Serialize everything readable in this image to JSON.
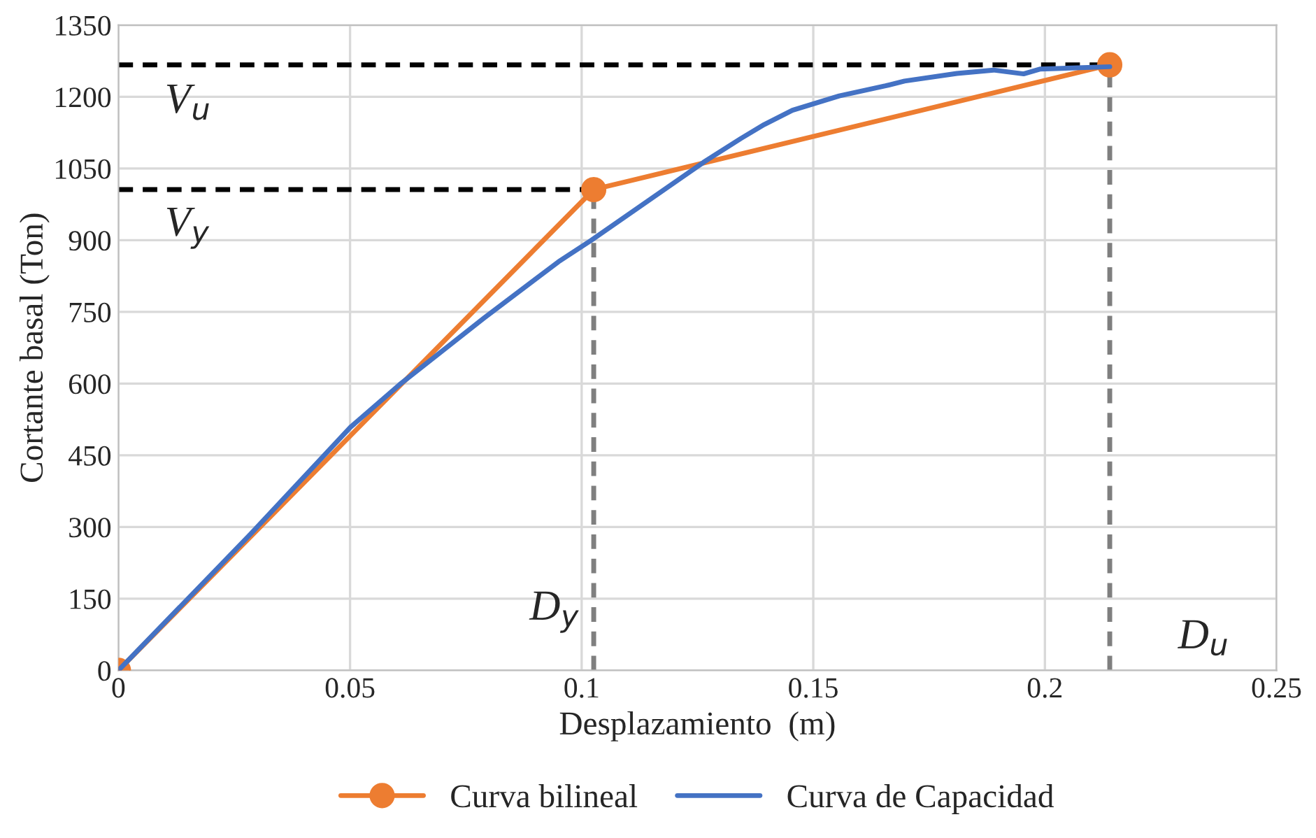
{
  "chart_data": {
    "type": "line",
    "xlabel": "Desplazamiento  (m)",
    "ylabel": "Cortante basal (Ton)",
    "xlim": [
      0,
      0.25
    ],
    "xticks": [
      0,
      0.05,
      0.1,
      0.15,
      0.2,
      0.25
    ],
    "ylim": [
      0,
      1350
    ],
    "yticks": [
      0,
      150,
      300,
      450,
      600,
      750,
      900,
      1050,
      1200,
      1350
    ],
    "grid": true,
    "legend": "bottom",
    "series": [
      {
        "name": "Curva bilineal",
        "color": "#ed7d31",
        "marker": "circle",
        "x": [
          0,
          0.1026,
          0.214
        ],
        "values": [
          0,
          1006,
          1267
        ]
      },
      {
        "name": "Curva de Capacidad",
        "color": "#4472c4",
        "marker": "none",
        "x": [
          0,
          0.0285,
          0.0501,
          0.0607,
          0.0789,
          0.095,
          0.1021,
          0.1263,
          0.1344,
          0.1394,
          0.1455,
          0.1556,
          0.1656,
          0.1697,
          0.181,
          0.1889,
          0.1954,
          0.1989,
          0.214
        ],
        "values": [
          0,
          285,
          509,
          598,
          737,
          855,
          900,
          1063,
          1113,
          1142,
          1172,
          1202,
          1223,
          1233,
          1249,
          1256,
          1248,
          1258,
          1263
        ]
      },
      {
        "color": "#000000",
        "line_style": "dashed",
        "marker": "none",
        "x": [
          0,
          0.214
        ],
        "values": [
          1267,
          1267
        ]
      },
      {
        "color": "#000000",
        "line_style": "dashed",
        "marker": "none",
        "x": [
          0,
          0.1026
        ],
        "values": [
          1006,
          1006
        ]
      },
      {
        "color": "#7f7f7f",
        "line_style": "dashed",
        "marker": "none",
        "x": [
          0.1026,
          0.1026
        ],
        "values": [
          0,
          1006
        ]
      },
      {
        "color": "#7f7f7f",
        "line_style": "dashed",
        "marker": "none",
        "x": [
          0.214,
          0.214
        ],
        "values": [
          0,
          1267
        ]
      }
    ],
    "annotations": [
      "V$_{u}$",
      "V$_{y}$",
      "D$_{y}$",
      "D$_{u}$"
    ]
  }
}
